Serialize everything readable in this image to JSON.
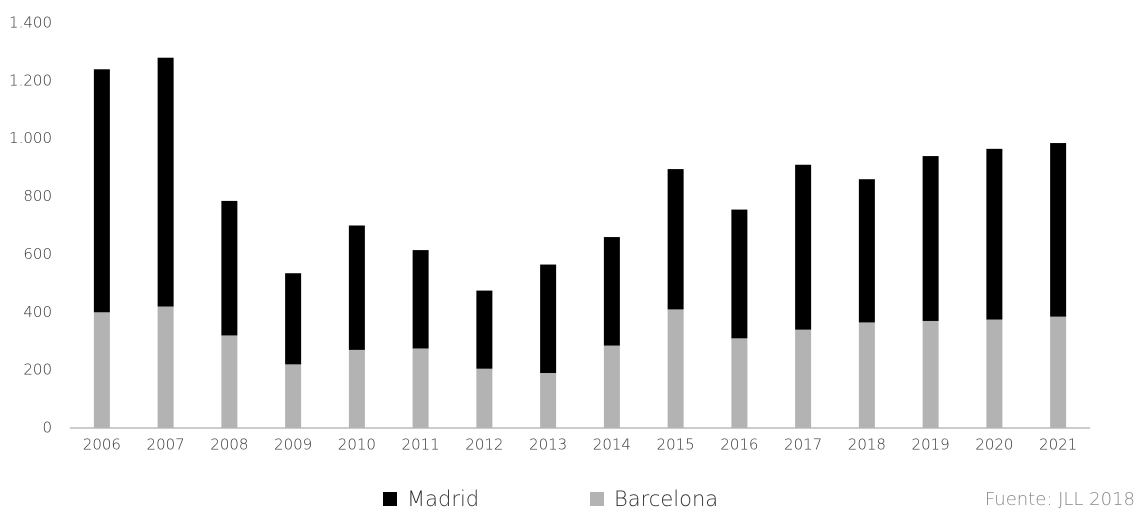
{
  "chart_data": {
    "type": "stacked_bar",
    "categories": [
      "2006",
      "2007",
      "2008",
      "2009",
      "2010",
      "2011",
      "2012",
      "2013",
      "2014",
      "2015",
      "2016",
      "2017",
      "2018",
      "2019",
      "2020",
      "2021"
    ],
    "series": [
      {
        "name": "Madrid",
        "color": "#000000",
        "values": [
          840,
          860,
          465,
          315,
          430,
          340,
          270,
          375,
          375,
          485,
          445,
          570,
          495,
          570,
          590,
          600
        ]
      },
      {
        "name": "Barcelona",
        "color": "#b3b3b3",
        "values": [
          400,
          420,
          320,
          220,
          270,
          275,
          205,
          190,
          285,
          410,
          310,
          340,
          365,
          370,
          375,
          385
        ]
      }
    ],
    "ylim": [
      0,
      1400
    ],
    "yticks": [
      0,
      200,
      400,
      600,
      800,
      {
        "value": 1000,
        "label": "1.000"
      },
      {
        "value": 1200,
        "label": "1.200"
      },
      {
        "value": 1400,
        "label": "1.400"
      }
    ],
    "grid": false,
    "legend": "bottom",
    "source": "Fuente: JLL 2018"
  }
}
